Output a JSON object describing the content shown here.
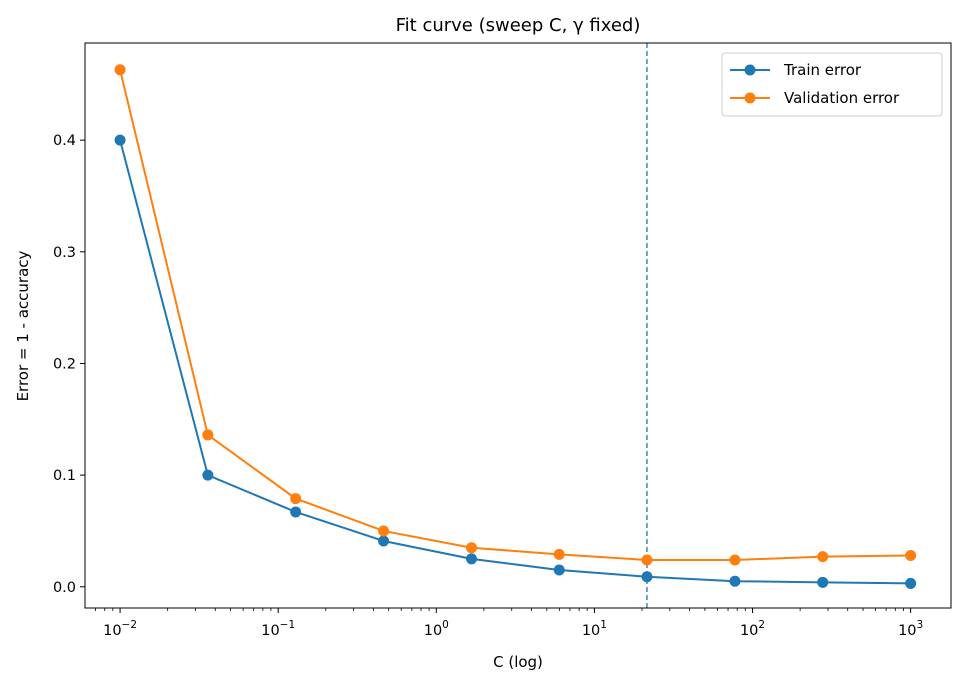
{
  "chart_data": {
    "type": "line",
    "title": "Fit curve (sweep C, γ fixed)",
    "xlabel": "C (log)",
    "ylabel": "Error = 1 - accuracy",
    "xscale": "log",
    "xlim": [
      0.006,
      1800
    ],
    "ylim": [
      -0.019,
      0.487
    ],
    "x": [
      0.01,
      0.0359,
      0.129,
      0.464,
      1.67,
      5.99,
      21.5,
      77.4,
      278,
      1000
    ],
    "series": [
      {
        "name": "Train error",
        "color": "#1f77b4",
        "values": [
          0.4,
          0.1,
          0.067,
          0.041,
          0.025,
          0.015,
          0.009,
          0.005,
          0.004,
          0.003
        ]
      },
      {
        "name": "Validation error",
        "color": "#ff7f0e",
        "values": [
          0.463,
          0.136,
          0.079,
          0.05,
          0.035,
          0.029,
          0.024,
          0.024,
          0.027,
          0.028
        ]
      }
    ],
    "y_ticks": [
      {
        "value": 0.0,
        "label": "0.0"
      },
      {
        "value": 0.1,
        "label": "0.1"
      },
      {
        "value": 0.2,
        "label": "0.2"
      },
      {
        "value": 0.3,
        "label": "0.3"
      },
      {
        "value": 0.4,
        "label": "0.4"
      }
    ],
    "x_ticks": [
      {
        "value": 0.01,
        "base": "10",
        "exp": "−2"
      },
      {
        "value": 0.1,
        "base": "10",
        "exp": "−1"
      },
      {
        "value": 1,
        "base": "10",
        "exp": "0"
      },
      {
        "value": 10,
        "base": "10",
        "exp": "1"
      },
      {
        "value": 100,
        "base": "10",
        "exp": "2"
      },
      {
        "value": 1000,
        "base": "10",
        "exp": "3"
      }
    ],
    "vline": {
      "x": 21.5,
      "color": "#1f77b4",
      "style": "dashed"
    },
    "legend_position": "top-right",
    "grid": false
  }
}
